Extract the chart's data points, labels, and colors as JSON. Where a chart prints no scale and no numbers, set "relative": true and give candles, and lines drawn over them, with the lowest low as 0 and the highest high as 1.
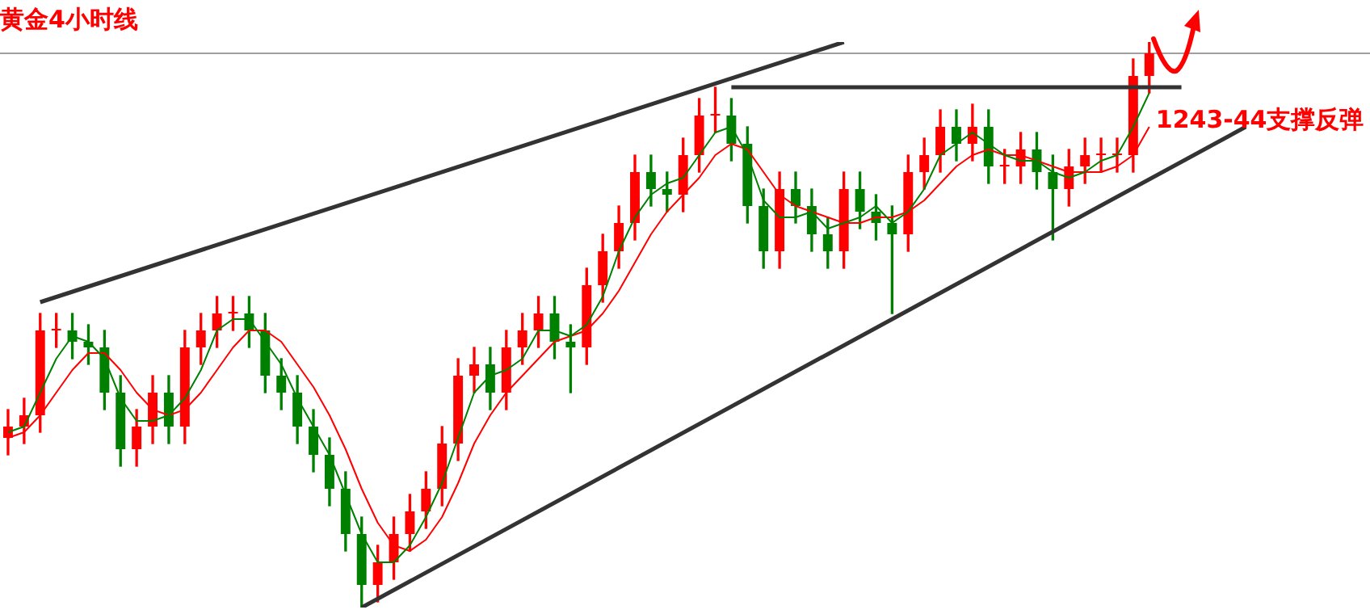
{
  "chart_data": {
    "type": "candlestick",
    "title": "黄金4小时线",
    "relative": true,
    "annotations": [
      "1243-44支撑反弹"
    ],
    "categories": [
      null,
      null,
      null,
      null,
      null,
      null,
      null,
      null,
      null,
      null,
      null,
      null,
      null,
      null,
      null,
      null,
      null,
      null,
      null,
      null,
      null,
      null,
      null,
      null,
      null,
      null,
      null,
      null,
      null,
      null,
      null,
      null,
      null,
      null,
      null,
      null,
      null,
      null,
      null,
      null,
      null,
      null,
      null,
      null,
      null,
      null,
      null,
      null,
      null,
      null,
      null,
      null,
      null,
      null,
      null,
      null,
      null,
      null,
      null,
      null,
      null,
      null,
      null,
      null,
      null,
      null,
      null,
      null,
      null,
      null,
      null,
      null,
      null,
      null,
      null,
      null,
      null,
      null,
      null
    ],
    "ohlc": [
      [
        0.3,
        0.35,
        0.27,
        0.32
      ],
      [
        0.32,
        0.37,
        0.29,
        0.34
      ],
      [
        0.34,
        0.52,
        0.31,
        0.49
      ],
      [
        0.49,
        0.52,
        0.46,
        0.49
      ],
      [
        0.49,
        0.52,
        0.44,
        0.47
      ],
      [
        0.47,
        0.5,
        0.43,
        0.46
      ],
      [
        0.46,
        0.49,
        0.35,
        0.38
      ],
      [
        0.38,
        0.41,
        0.25,
        0.28
      ],
      [
        0.28,
        0.35,
        0.25,
        0.32
      ],
      [
        0.32,
        0.41,
        0.29,
        0.38
      ],
      [
        0.38,
        0.41,
        0.29,
        0.32
      ],
      [
        0.32,
        0.49,
        0.29,
        0.46
      ],
      [
        0.46,
        0.52,
        0.43,
        0.49
      ],
      [
        0.49,
        0.55,
        0.46,
        0.52
      ],
      [
        0.52,
        0.55,
        0.49,
        0.52
      ],
      [
        0.52,
        0.55,
        0.46,
        0.49
      ],
      [
        0.49,
        0.52,
        0.38,
        0.41
      ],
      [
        0.41,
        0.44,
        0.35,
        0.38
      ],
      [
        0.38,
        0.41,
        0.29,
        0.32
      ],
      [
        0.32,
        0.35,
        0.24,
        0.27
      ],
      [
        0.27,
        0.3,
        0.18,
        0.21
      ],
      [
        0.21,
        0.24,
        0.1,
        0.13
      ],
      [
        0.13,
        0.16,
        0.0,
        0.04
      ],
      [
        0.04,
        0.11,
        0.01,
        0.08
      ],
      [
        0.08,
        0.16,
        0.05,
        0.13
      ],
      [
        0.13,
        0.2,
        0.1,
        0.17
      ],
      [
        0.17,
        0.24,
        0.14,
        0.21
      ],
      [
        0.21,
        0.32,
        0.18,
        0.29
      ],
      [
        0.29,
        0.44,
        0.26,
        0.41
      ],
      [
        0.41,
        0.46,
        0.38,
        0.43
      ],
      [
        0.43,
        0.46,
        0.35,
        0.38
      ],
      [
        0.38,
        0.49,
        0.35,
        0.46
      ],
      [
        0.46,
        0.52,
        0.43,
        0.49
      ],
      [
        0.49,
        0.55,
        0.46,
        0.52
      ],
      [
        0.52,
        0.55,
        0.44,
        0.47
      ],
      [
        0.47,
        0.5,
        0.38,
        0.46
      ],
      [
        0.46,
        0.6,
        0.43,
        0.57
      ],
      [
        0.57,
        0.66,
        0.54,
        0.63
      ],
      [
        0.63,
        0.71,
        0.6,
        0.68
      ],
      [
        0.68,
        0.8,
        0.65,
        0.77
      ],
      [
        0.77,
        0.8,
        0.71,
        0.74
      ],
      [
        0.74,
        0.77,
        0.7,
        0.73
      ],
      [
        0.73,
        0.83,
        0.7,
        0.8
      ],
      [
        0.8,
        0.9,
        0.77,
        0.87
      ],
      [
        0.87,
        0.92,
        0.84,
        0.87
      ],
      [
        0.87,
        0.9,
        0.79,
        0.82
      ],
      [
        0.82,
        0.85,
        0.68,
        0.71
      ],
      [
        0.71,
        0.74,
        0.6,
        0.63
      ],
      [
        0.63,
        0.77,
        0.6,
        0.74
      ],
      [
        0.74,
        0.77,
        0.68,
        0.71
      ],
      [
        0.71,
        0.74,
        0.63,
        0.66
      ],
      [
        0.66,
        0.69,
        0.6,
        0.63
      ],
      [
        0.63,
        0.77,
        0.6,
        0.74
      ],
      [
        0.74,
        0.77,
        0.67,
        0.7
      ],
      [
        0.7,
        0.73,
        0.65,
        0.68
      ],
      [
        0.68,
        0.71,
        0.52,
        0.66
      ],
      [
        0.66,
        0.8,
        0.63,
        0.77
      ],
      [
        0.77,
        0.83,
        0.74,
        0.8
      ],
      [
        0.8,
        0.88,
        0.77,
        0.85
      ],
      [
        0.85,
        0.88,
        0.79,
        0.82
      ],
      [
        0.82,
        0.89,
        0.79,
        0.85
      ],
      [
        0.85,
        0.88,
        0.75,
        0.78
      ],
      [
        0.78,
        0.81,
        0.75,
        0.78
      ],
      [
        0.78,
        0.84,
        0.75,
        0.81
      ],
      [
        0.81,
        0.84,
        0.74,
        0.77
      ],
      [
        0.77,
        0.8,
        0.65,
        0.74
      ],
      [
        0.74,
        0.81,
        0.71,
        0.78
      ],
      [
        0.78,
        0.83,
        0.75,
        0.8
      ],
      [
        0.8,
        0.83,
        0.77,
        0.8
      ],
      [
        0.8,
        0.83,
        0.77,
        0.8
      ],
      [
        0.8,
        0.97,
        0.77,
        0.94
      ],
      [
        0.94,
        1.0,
        0.91,
        0.98
      ],
      null,
      null,
      null,
      null,
      null,
      null,
      null
    ],
    "colors": [
      "#ff0000",
      "#ff0000",
      "#ff0000",
      "#ff0000",
      "#008000",
      "#008000",
      "#008000",
      "#008000",
      "#ff0000",
      "#ff0000",
      "#008000",
      "#ff0000",
      "#ff0000",
      "#ff0000",
      "#ff0000",
      "#008000",
      "#008000",
      "#008000",
      "#008000",
      "#008000",
      "#008000",
      "#008000",
      "#008000",
      "#ff0000",
      "#ff0000",
      "#ff0000",
      "#ff0000",
      "#ff0000",
      "#ff0000",
      "#ff0000",
      "#008000",
      "#ff0000",
      "#ff0000",
      "#ff0000",
      "#008000",
      "#008000",
      "#ff0000",
      "#ff0000",
      "#ff0000",
      "#ff0000",
      "#008000",
      "#008000",
      "#ff0000",
      "#ff0000",
      "#ff0000",
      "#008000",
      "#008000",
      "#008000",
      "#ff0000",
      "#008000",
      "#008000",
      "#008000",
      "#ff0000",
      "#008000",
      "#008000",
      "#008000",
      "#ff0000",
      "#ff0000",
      "#ff0000",
      "#008000",
      "#ff0000",
      "#008000",
      "#ff0000",
      "#ff0000",
      "#008000",
      "#008000",
      "#ff0000",
      "#ff0000",
      "#ff0000",
      "#ff0000",
      "#ff0000",
      "#ff0000",
      null,
      null,
      null,
      null,
      null,
      null,
      null
    ],
    "series": [
      {
        "type": "line",
        "color": "#008000",
        "values": [
          0.31,
          0.32,
          0.38,
          0.44,
          0.48,
          0.47,
          0.44,
          0.37,
          0.33,
          0.33,
          0.34,
          0.37,
          0.42,
          0.49,
          0.51,
          0.51,
          0.47,
          0.43,
          0.37,
          0.32,
          0.27,
          0.2,
          0.13,
          0.08,
          0.08,
          0.11,
          0.16,
          0.22,
          0.3,
          0.38,
          0.41,
          0.42,
          0.44,
          0.49,
          0.49,
          0.48,
          0.5,
          0.55,
          0.63,
          0.69,
          0.73,
          0.75,
          0.76,
          0.8,
          0.84,
          0.85,
          0.8,
          0.72,
          0.69,
          0.69,
          0.7,
          0.67,
          0.68,
          0.69,
          0.71,
          0.68,
          0.7,
          0.74,
          0.8,
          0.82,
          0.84,
          0.82,
          0.8,
          0.79,
          0.79,
          0.77,
          0.76,
          0.77,
          0.79,
          0.8,
          0.85,
          0.91,
          null,
          null,
          null,
          null,
          null,
          null,
          null
        ]
      },
      {
        "type": "line",
        "color": "#ff0000",
        "values": [
          0.3,
          0.31,
          0.34,
          0.38,
          0.42,
          0.45,
          0.45,
          0.42,
          0.38,
          0.35,
          0.34,
          0.35,
          0.38,
          0.42,
          0.46,
          0.49,
          0.49,
          0.47,
          0.43,
          0.39,
          0.34,
          0.28,
          0.21,
          0.15,
          0.11,
          0.1,
          0.12,
          0.16,
          0.22,
          0.29,
          0.34,
          0.38,
          0.41,
          0.44,
          0.47,
          0.48,
          0.49,
          0.52,
          0.56,
          0.61,
          0.66,
          0.7,
          0.73,
          0.76,
          0.8,
          0.82,
          0.81,
          0.77,
          0.73,
          0.71,
          0.7,
          0.69,
          0.68,
          0.68,
          0.69,
          0.69,
          0.7,
          0.72,
          0.75,
          0.78,
          0.8,
          0.81,
          0.8,
          0.8,
          0.79,
          0.78,
          0.77,
          0.77,
          0.77,
          0.78,
          0.8,
          0.85,
          null,
          null,
          null,
          null,
          null,
          null,
          null
        ]
      },
      {
        "type": "line",
        "color": "#333333",
        "values": [
          null,
          null,
          0.54,
          null,
          null,
          null,
          null,
          null,
          null,
          null,
          null,
          null,
          null,
          null,
          null,
          null,
          null,
          null,
          null,
          null,
          null,
          null,
          null,
          null,
          null,
          null,
          null,
          null,
          null,
          null,
          null,
          null,
          null,
          null,
          null,
          null,
          null,
          null,
          null,
          null,
          null,
          null,
          null,
          null,
          null,
          null,
          null,
          null,
          null,
          null,
          null,
          null,
          1.0,
          null,
          null,
          null,
          null,
          null,
          null,
          null,
          null,
          null,
          null,
          null,
          null,
          null,
          null,
          null,
          null,
          null,
          null,
          null,
          null,
          null,
          null,
          null,
          null,
          null,
          null
        ]
      },
      {
        "type": "line",
        "color": "#333333",
        "values": [
          null,
          null,
          null,
          null,
          null,
          null,
          null,
          null,
          null,
          null,
          null,
          null,
          null,
          null,
          null,
          null,
          null,
          null,
          null,
          null,
          null,
          null,
          0.0,
          null,
          null,
          null,
          null,
          null,
          null,
          null,
          null,
          null,
          null,
          null,
          null,
          null,
          null,
          null,
          null,
          null,
          null,
          null,
          null,
          null,
          null,
          null,
          null,
          null,
          null,
          null,
          null,
          null,
          null,
          null,
          null,
          null,
          null,
          null,
          null,
          null,
          null,
          null,
          null,
          null,
          null,
          null,
          null,
          null,
          null,
          null,
          null,
          null,
          null,
          null,
          null,
          null,
          null,
          0.85,
          null
        ]
      },
      {
        "type": "line",
        "color": "#333333",
        "values": [
          null,
          null,
          null,
          null,
          null,
          null,
          null,
          null,
          null,
          null,
          null,
          null,
          null,
          null,
          null,
          null,
          null,
          null,
          null,
          null,
          null,
          null,
          null,
          null,
          null,
          null,
          null,
          null,
          null,
          null,
          null,
          null,
          null,
          null,
          null,
          null,
          null,
          null,
          null,
          null,
          null,
          null,
          null,
          null,
          null,
          0.92,
          null,
          null,
          null,
          null,
          null,
          null,
          null,
          null,
          null,
          null,
          null,
          null,
          null,
          null,
          null,
          null,
          null,
          null,
          null,
          null,
          null,
          null,
          null,
          null,
          null,
          null,
          null,
          0.92,
          null,
          null,
          null,
          null,
          null
        ]
      }
    ],
    "ref_lines": [
      {
        "axis": "y",
        "value": 0.98,
        "color": "#a0a0a0"
      }
    ]
  }
}
